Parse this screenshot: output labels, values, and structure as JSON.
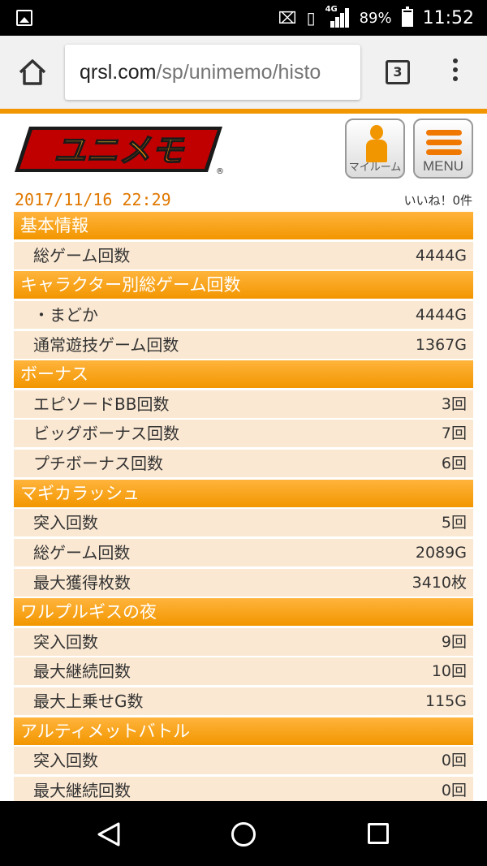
{
  "status_bar": {
    "battery_percent": "89%",
    "time": "11:52",
    "network_type": "4G",
    "icons": [
      "image-icon",
      "no-sim-icon",
      "vibrate-icon",
      "signal-icon",
      "battery-icon"
    ]
  },
  "browser": {
    "url_host": "qrsl.com",
    "url_path": "/sp/unimemo/histo",
    "tab_count": "3"
  },
  "header": {
    "logo_text": "ユニメモ",
    "myroom_label": "マイルーム",
    "menu_label": "MENU"
  },
  "meta": {
    "datetime": "2017/11/16 22:29",
    "likes": "いいね！0件"
  },
  "rows": [
    {
      "type": "section",
      "label": "基本情報"
    },
    {
      "type": "item",
      "label": "総ゲーム回数",
      "value": "4444G"
    },
    {
      "type": "section",
      "label": "キャラクター別総ゲーム回数"
    },
    {
      "type": "item",
      "label": "・まどか",
      "value": "4444G"
    },
    {
      "type": "item",
      "label": "通常遊技ゲーム回数",
      "value": "1367G"
    },
    {
      "type": "section",
      "label": "ボーナス"
    },
    {
      "type": "item",
      "label": "エピソードBB回数",
      "value": "3回"
    },
    {
      "type": "item",
      "label": "ビッグボーナス回数",
      "value": "7回"
    },
    {
      "type": "item",
      "label": "プチボーナス回数",
      "value": "6回"
    },
    {
      "type": "section",
      "label": "マギカラッシュ"
    },
    {
      "type": "item",
      "label": "突入回数",
      "value": "5回"
    },
    {
      "type": "item",
      "label": "総ゲーム回数",
      "value": "2089G"
    },
    {
      "type": "item",
      "label": "最大獲得枚数",
      "value": "3410枚"
    },
    {
      "type": "section",
      "label": "ワルプルギスの夜"
    },
    {
      "type": "item",
      "label": "突入回数",
      "value": "9回"
    },
    {
      "type": "item",
      "label": "最大継続回数",
      "value": "10回"
    },
    {
      "type": "item",
      "label": "最大上乗せG数",
      "value": "115G"
    },
    {
      "type": "section",
      "label": "アルティメットバトル"
    },
    {
      "type": "item",
      "label": "突入回数",
      "value": "0回"
    },
    {
      "type": "item",
      "label": "最大継続回数",
      "value": "0回"
    }
  ],
  "colors": {
    "accent": "#f29600",
    "row_background": "#fbe8d2",
    "date_text": "#e07800"
  }
}
